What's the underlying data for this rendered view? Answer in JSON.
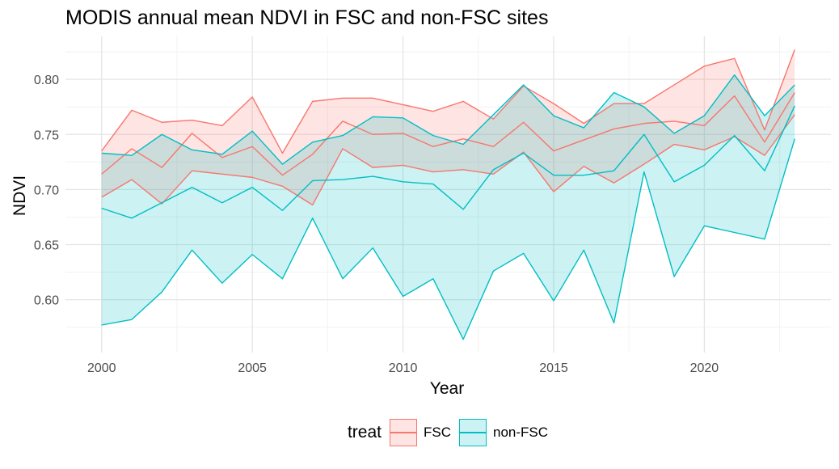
{
  "chart_data": {
    "type": "area",
    "title": "MODIS annual mean NDVI in FSC and non-FSC sites",
    "xlabel": "Year",
    "ylabel": "NDVI",
    "xlim": [
      1998.8,
      2024.2
    ],
    "ylim": [
      0.552,
      0.839
    ],
    "x_ticks": [
      2000,
      2005,
      2010,
      2015,
      2020
    ],
    "y_ticks": [
      0.6,
      0.65,
      0.7,
      0.75,
      0.8
    ],
    "y_tick_labels": [
      "0.60",
      "0.65",
      "0.70",
      "0.75",
      "0.80"
    ],
    "grid": true,
    "legend_position": "bottom",
    "legend_title": "treat",
    "x": [
      2000,
      2001,
      2002,
      2003,
      2004,
      2005,
      2006,
      2007,
      2008,
      2009,
      2010,
      2011,
      2012,
      2013,
      2014,
      2015,
      2016,
      2017,
      2018,
      2019,
      2020,
      2021,
      2022,
      2023
    ],
    "series": [
      {
        "name": "FSC",
        "color": "#F8766D",
        "fill": "#F8766D",
        "upper": [
          0.735,
          0.772,
          0.761,
          0.763,
          0.758,
          0.784,
          0.733,
          0.78,
          0.783,
          0.783,
          0.777,
          0.771,
          0.78,
          0.764,
          0.794,
          0.778,
          0.76,
          0.778,
          0.778,
          0.795,
          0.812,
          0.819,
          0.754,
          0.827
        ],
        "mean": [
          0.714,
          0.737,
          0.72,
          0.751,
          0.729,
          0.739,
          0.713,
          0.732,
          0.762,
          0.75,
          0.751,
          0.739,
          0.746,
          0.739,
          0.761,
          0.735,
          0.745,
          0.755,
          0.76,
          0.762,
          0.758,
          0.785,
          0.743,
          0.788
        ],
        "lower": [
          0.693,
          0.709,
          0.687,
          0.717,
          0.714,
          0.711,
          0.703,
          0.686,
          0.737,
          0.72,
          0.722,
          0.716,
          0.718,
          0.714,
          0.734,
          0.698,
          0.721,
          0.706,
          0.723,
          0.741,
          0.736,
          0.748,
          0.731,
          0.768
        ]
      },
      {
        "name": "non-FSC",
        "color": "#00BFC4",
        "fill": "#00BFC4",
        "upper": [
          0.733,
          0.731,
          0.75,
          0.736,
          0.732,
          0.753,
          0.723,
          0.743,
          0.749,
          0.766,
          0.765,
          0.749,
          0.741,
          0.768,
          0.795,
          0.767,
          0.756,
          0.788,
          0.775,
          0.751,
          0.767,
          0.804,
          0.767,
          0.795
        ],
        "mean": [
          0.683,
          0.674,
          0.688,
          0.702,
          0.688,
          0.702,
          0.681,
          0.708,
          0.709,
          0.712,
          0.707,
          0.705,
          0.682,
          0.718,
          0.733,
          0.713,
          0.713,
          0.717,
          0.75,
          0.707,
          0.722,
          0.749,
          0.717,
          0.776
        ],
        "lower": [
          0.577,
          0.582,
          0.607,
          0.645,
          0.615,
          0.641,
          0.619,
          0.674,
          0.619,
          0.647,
          0.603,
          0.619,
          0.564,
          0.626,
          0.642,
          0.599,
          0.645,
          0.579,
          0.716,
          0.621,
          0.667,
          0.661,
          0.655,
          0.746
        ]
      }
    ]
  }
}
